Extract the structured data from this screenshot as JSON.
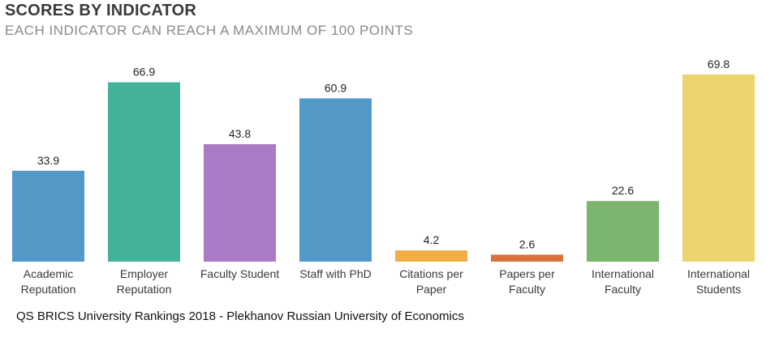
{
  "header": {
    "title": "SCORES BY INDICATOR",
    "subtitle": "EACH INDICATOR CAN REACH A MAXIMUM OF 100 POINTS"
  },
  "source": "QS BRICS University Rankings 2018 - Plekhanov Russian University of Economics",
  "chart_data": {
    "type": "bar",
    "title": "SCORES BY INDICATOR",
    "subtitle": "EACH INDICATOR CAN REACH A MAXIMUM OF 100 POINTS",
    "xlabel": "",
    "ylabel": "",
    "ylim": [
      0,
      100
    ],
    "grid": false,
    "legend": "none",
    "categories": [
      [
        "Academic",
        "Reputation"
      ],
      [
        "Employer",
        "Reputation"
      ],
      [
        "Faculty Student"
      ],
      [
        "Staff with PhD"
      ],
      [
        "Citations per",
        "Paper"
      ],
      [
        "Papers per",
        "Faculty"
      ],
      [
        "International",
        "Faculty"
      ],
      [
        "International",
        "Students"
      ]
    ],
    "values": [
      33.9,
      66.9,
      43.8,
      60.9,
      4.2,
      2.6,
      22.6,
      69.8
    ],
    "value_labels": [
      "33.9",
      "66.9",
      "43.8",
      "60.9",
      "4.2",
      "2.6",
      "22.6",
      "69.8"
    ],
    "colors": [
      "#5399c8",
      "#42b39a",
      "#ab7ac4",
      "#5399c8",
      "#f2ae44",
      "#d9733a",
      "#7bb56e",
      "#edd36e"
    ]
  }
}
